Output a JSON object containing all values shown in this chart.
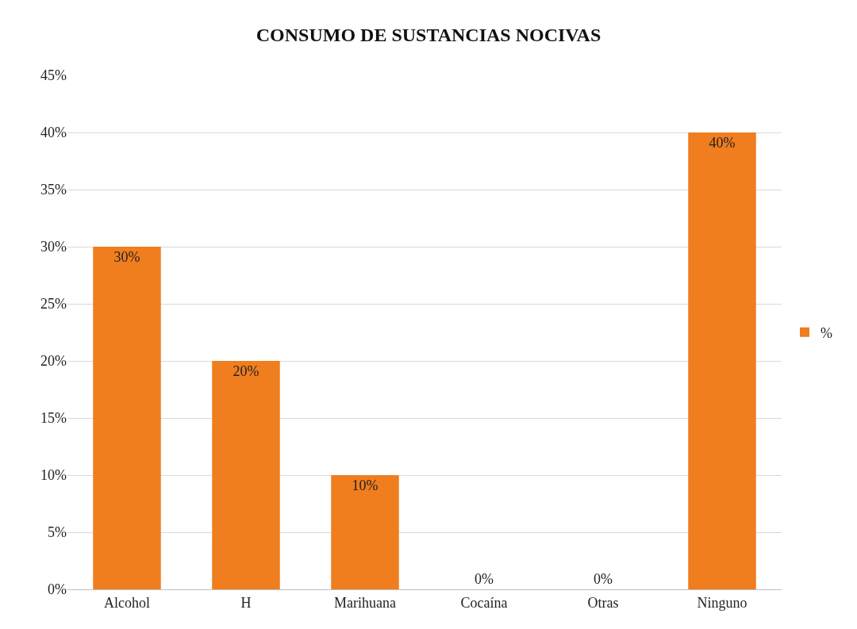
{
  "chart_data": {
    "type": "bar",
    "title": "CONSUMO DE SUSTANCIAS NOCIVAS",
    "categories": [
      "Alcohol",
      "H",
      "Marihuana",
      "Cocaína",
      "Otras",
      "Ninguno"
    ],
    "series": [
      {
        "name": "%",
        "color": "#f07d1e",
        "values": [
          30,
          20,
          10,
          0,
          0,
          40
        ],
        "value_labels": [
          "30%",
          "20%",
          "10%",
          "0%",
          "0%",
          "40%"
        ]
      }
    ],
    "ylim": [
      0,
      45
    ],
    "yticks": [
      {
        "value": 0,
        "label": "0%"
      },
      {
        "value": 5,
        "label": "5%"
      },
      {
        "value": 10,
        "label": "10%"
      },
      {
        "value": 15,
        "label": "15%"
      },
      {
        "value": 20,
        "label": "20%"
      },
      {
        "value": 25,
        "label": "25%"
      },
      {
        "value": 30,
        "label": "30%"
      },
      {
        "value": 35,
        "label": "35%"
      },
      {
        "value": 40,
        "label": "40%"
      },
      {
        "value": 45,
        "label": "45%"
      }
    ],
    "grid": "y",
    "legend": "right"
  }
}
